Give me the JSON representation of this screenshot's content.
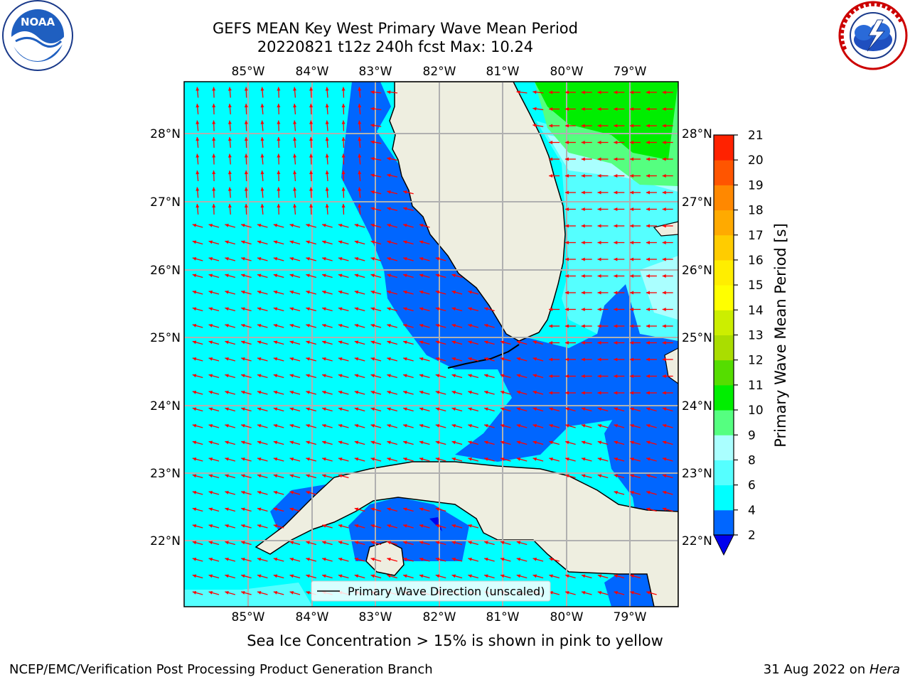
{
  "title_line1": "GEFS MEAN Key West Primary Wave Mean Period",
  "title_line2": "20220821 t12z 240h fcst   Max: 10.24",
  "footer_note": "Sea Ice Concentration > 15% is shown in pink to yellow",
  "credit": "NCEP/EMC/Verification Post Processing Product Generation Branch",
  "date_text": "31 Aug 2022 on ",
  "machine": "Hera",
  "legend_label": "Primary Wave Direction (unscaled)",
  "colorbar": {
    "label": "Primary Wave Mean Period [s]",
    "ticks": [
      "2",
      "4",
      "6",
      "8",
      "9",
      "10",
      "11",
      "12",
      "13",
      "14",
      "15",
      "16",
      "17",
      "18",
      "19",
      "20",
      "21"
    ],
    "colors": [
      "#0066ff",
      "#00ffff",
      "#55ffff",
      "#aaffff",
      "#55ff80",
      "#00ee00",
      "#55dd00",
      "#aadd00",
      "#ccee00",
      "#ffff00",
      "#ffee00",
      "#ffcc00",
      "#ffaa00",
      "#ff8800",
      "#ff5500",
      "#ff2200"
    ],
    "under_color": "#0000ee"
  },
  "lon_labels": [
    "85°W",
    "84°W",
    "83°W",
    "82°W",
    "81°W",
    "80°W",
    "79°W"
  ],
  "lat_labels": [
    "28°N",
    "27°N",
    "26°N",
    "25°N",
    "24°N",
    "23°N",
    "22°N"
  ],
  "logos": {
    "noaa": "NOAA",
    "nws": "NATIONAL WEATHER SERVICE"
  },
  "map_colors": {
    "land": "#eeeee0",
    "arrow": "#ff0000",
    "grid": "#b0b0b0"
  }
}
